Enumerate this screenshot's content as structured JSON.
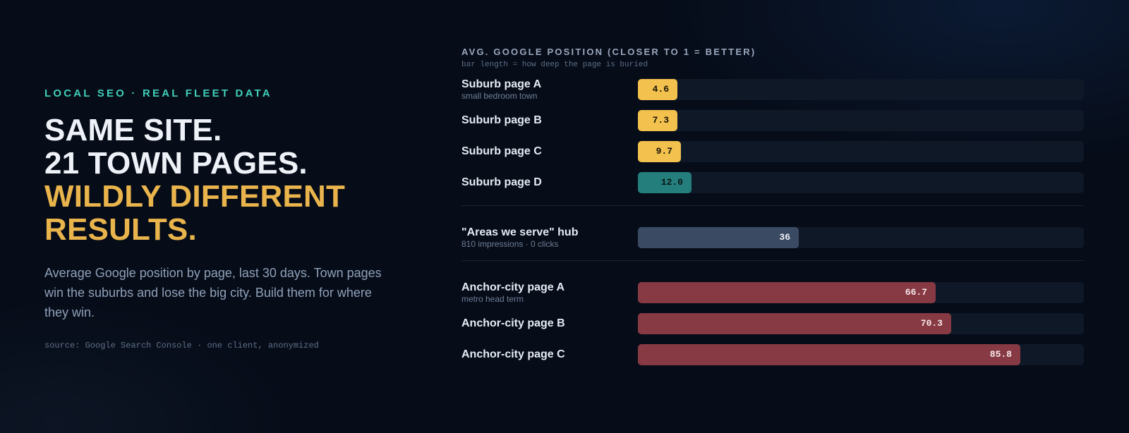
{
  "left": {
    "eyebrow": "LOCAL SEO · REAL FLEET DATA",
    "headline_line1": "SAME SITE.",
    "headline_line2": "21 TOWN PAGES.",
    "headline_line3": "WILDLY DIFFERENT",
    "headline_line4": "RESULTS.",
    "description": "Average Google position by page, last 30 days. Town pages win the suburbs and lose the big city. Build them for where they win.",
    "source": "source: Google Search Console · one client, anonymized"
  },
  "colors": {
    "accent_teal": "#3fcfb8",
    "accent_gold": "#e9b44c",
    "suburb_bar": "#f2c14e",
    "suburb_d_bar": "#247f7c",
    "hub_bar": "#3b4a63",
    "anchor_bar": "#873a44"
  },
  "chart_data": {
    "type": "bar",
    "orientation": "horizontal",
    "title": "AVG. GOOGLE POSITION (CLOSER TO 1 = BETTER)",
    "subtitle": "bar length = how deep the page is buried",
    "xlim": [
      0,
      100
    ],
    "grid": false,
    "groups": [
      {
        "rows": [
          {
            "label": "Suburb page A",
            "note": "small bedroom town",
            "value": 4.6,
            "display": "4.6",
            "color": "#f2c14e",
            "text_color": "#1a1306"
          },
          {
            "label": "Suburb page B",
            "note": "",
            "value": 7.3,
            "display": "7.3",
            "color": "#f2c14e",
            "text_color": "#1a1306"
          },
          {
            "label": "Suburb page C",
            "note": "",
            "value": 9.7,
            "display": "9.7",
            "color": "#f2c14e",
            "text_color": "#1a1306"
          },
          {
            "label": "Suburb page D",
            "note": "",
            "value": 12.0,
            "display": "12.0",
            "color": "#247f7c",
            "text_color": "#0a1414"
          }
        ]
      },
      {
        "rows": [
          {
            "label": "\"Areas we serve\" hub",
            "note": "810 impressions · 0 clicks",
            "value": 36,
            "display": "36",
            "color": "#3b4a63",
            "text_color": "#f2f5fa"
          }
        ]
      },
      {
        "rows": [
          {
            "label": "Anchor-city page A",
            "note": "metro head term",
            "value": 66.7,
            "display": "66.7",
            "color": "#873a44",
            "text_color": "#f6e9ea"
          },
          {
            "label": "Anchor-city page B",
            "note": "",
            "value": 70.3,
            "display": "70.3",
            "color": "#873a44",
            "text_color": "#f6e9ea"
          },
          {
            "label": "Anchor-city page C",
            "note": "",
            "value": 85.8,
            "display": "85.8",
            "color": "#873a44",
            "text_color": "#f6e9ea"
          }
        ]
      }
    ]
  }
}
